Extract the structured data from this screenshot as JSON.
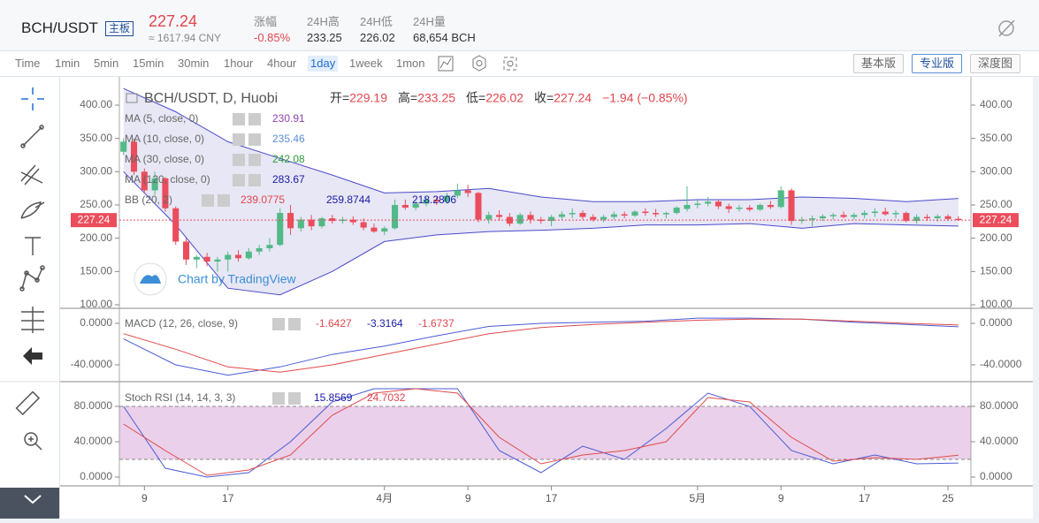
{
  "header": {
    "symbol": "BCH/USDT",
    "badge": "主板",
    "price": 227.24,
    "cny": "≈ 1617.94 CNY",
    "stats": [
      {
        "label": "涨幅",
        "value": "-0.85%",
        "color": "#e0464e"
      },
      {
        "label": "24H高",
        "value": "233.25",
        "color": "#333"
      },
      {
        "label": "24H低",
        "value": "226.02",
        "color": "#333"
      },
      {
        "label": "24H量",
        "value": "68,654 BCH",
        "color": "#333"
      }
    ]
  },
  "toolbar": {
    "intervals": [
      "Time",
      "1min",
      "5min",
      "15min",
      "30min",
      "1hour",
      "4hour",
      "1day",
      "1week",
      "1mon"
    ],
    "selected_interval": "1day",
    "buttons": [
      "基本版",
      "专业版",
      "深度图"
    ],
    "selected_button": "专业版"
  },
  "chart": {
    "title": "BCH/USDT, D, Huobi",
    "ohlc_legend": [
      {
        "label": "开=",
        "value": "229.19"
      },
      {
        "label": "高=",
        "value": "233.25"
      },
      {
        "label": "低=",
        "value": "226.02"
      },
      {
        "label": "收=",
        "value": "227.24"
      }
    ],
    "change": "−1.94 (−0.85%)",
    "watermark": "Chart by TradingView",
    "up_color": "#53b987",
    "down_color": "#eb4d5c",
    "xlim": [
      -0.4,
      81.2
    ],
    "xticks": [
      {
        "value": 2,
        "label": "9"
      },
      {
        "value": 10,
        "label": "17"
      },
      {
        "value": 25,
        "label": "4月"
      },
      {
        "value": 33,
        "label": "9"
      },
      {
        "value": 41,
        "label": "17"
      },
      {
        "value": 55,
        "label": "5月"
      },
      {
        "value": 63,
        "label": "9"
      },
      {
        "value": 71,
        "label": "17"
      },
      {
        "value": 79,
        "label": "25"
      }
    ],
    "ylim": [
      94.7,
      438.5
    ],
    "yticks": [
      {
        "value": 100,
        "label": "100.00"
      },
      {
        "value": 150,
        "label": "150.00"
      },
      {
        "value": 200,
        "label": "200.00"
      },
      {
        "value": 250,
        "label": "250.00"
      },
      {
        "value": 300,
        "label": "300.00"
      },
      {
        "value": 350,
        "label": "350.00"
      },
      {
        "value": 400,
        "label": "400.00"
      }
    ],
    "ohlc": [
      [
        330,
        350,
        325,
        345
      ],
      [
        345,
        350,
        295,
        300
      ],
      [
        300,
        305,
        268,
        272
      ],
      [
        272,
        300,
        265,
        290
      ],
      [
        290,
        292,
        240,
        245
      ],
      [
        245,
        248,
        190,
        195
      ],
      [
        195,
        200,
        160,
        168
      ],
      [
        168,
        175,
        155,
        172
      ],
      [
        172,
        178,
        158,
        165
      ],
      [
        165,
        172,
        150,
        168
      ],
      [
        168,
        180,
        150,
        175
      ],
      [
        175,
        182,
        165,
        170
      ],
      [
        170,
        185,
        168,
        180
      ],
      [
        180,
        190,
        175,
        185
      ],
      [
        185,
        200,
        180,
        190
      ],
      [
        190,
        245,
        188,
        238
      ],
      [
        238,
        250,
        205,
        215
      ],
      [
        215,
        232,
        210,
        228
      ],
      [
        228,
        235,
        212,
        218
      ],
      [
        218,
        232,
        215,
        230
      ],
      [
        230,
        235,
        222,
        226
      ],
      [
        226,
        232,
        222,
        228
      ],
      [
        228,
        233,
        220,
        224
      ],
      [
        224,
        230,
        212,
        216
      ],
      [
        216,
        222,
        208,
        210
      ],
      [
        210,
        218,
        205,
        215
      ],
      [
        215,
        258,
        213,
        250
      ],
      [
        250,
        258,
        243,
        246
      ],
      [
        246,
        256,
        242,
        252
      ],
      [
        252,
        262,
        248,
        258
      ],
      [
        258,
        262,
        250,
        255
      ],
      [
        255,
        268,
        252,
        264
      ],
      [
        264,
        282,
        260,
        272
      ],
      [
        272,
        280,
        262,
        268
      ],
      [
        268,
        270,
        224,
        228
      ],
      [
        228,
        240,
        222,
        235
      ],
      [
        235,
        242,
        226,
        232
      ],
      [
        232,
        238,
        218,
        222
      ],
      [
        222,
        238,
        220,
        235
      ],
      [
        235,
        240,
        222,
        228
      ],
      [
        228,
        232,
        222,
        226
      ],
      [
        226,
        235,
        218,
        232
      ],
      [
        232,
        240,
        228,
        236
      ],
      [
        236,
        245,
        230,
        238
      ],
      [
        238,
        242,
        228,
        232
      ],
      [
        232,
        236,
        225,
        228
      ],
      [
        228,
        235,
        224,
        232
      ],
      [
        232,
        240,
        228,
        236
      ],
      [
        236,
        240,
        230,
        234
      ],
      [
        234,
        242,
        232,
        240
      ],
      [
        240,
        245,
        234,
        238
      ],
      [
        238,
        244,
        232,
        236
      ],
      [
        236,
        240,
        230,
        238
      ],
      [
        238,
        248,
        236,
        246
      ],
      [
        244,
        278,
        240,
        250
      ],
      [
        250,
        258,
        245,
        252
      ],
      [
        252,
        262,
        248,
        255
      ],
      [
        255,
        258,
        244,
        248
      ],
      [
        248,
        252,
        238,
        244
      ],
      [
        244,
        250,
        240,
        246
      ],
      [
        246,
        250,
        240,
        243
      ],
      [
        243,
        252,
        241,
        250
      ],
      [
        250,
        256,
        244,
        247
      ],
      [
        247,
        278,
        245,
        272
      ],
      [
        272,
        275,
        220,
        226
      ],
      [
        226,
        232,
        222,
        228
      ],
      [
        228,
        234,
        218,
        230
      ],
      [
        230,
        236,
        226,
        233
      ],
      [
        233,
        238,
        228,
        235
      ],
      [
        235,
        240,
        230,
        232
      ],
      [
        232,
        238,
        228,
        235
      ],
      [
        235,
        242,
        230,
        238
      ],
      [
        238,
        245,
        232,
        240
      ],
      [
        240,
        246,
        234,
        236
      ],
      [
        236,
        242,
        230,
        238
      ],
      [
        238,
        240,
        224,
        226
      ],
      [
        226,
        236,
        222,
        232
      ],
      [
        232,
        236,
        226,
        230
      ],
      [
        230,
        236,
        225,
        233
      ],
      [
        233,
        236,
        226,
        229
      ],
      [
        229.19,
        233.25,
        226.02,
        227.24
      ]
    ],
    "indicators": [
      {
        "name": "MA (5, close, 0)",
        "value": "230.91",
        "color": "#8e44ad"
      },
      {
        "name": "MA (10, close, 0)",
        "value": "235.46",
        "color": "#5b8fd6"
      },
      {
        "name": "MA (30, close, 0)",
        "value": "242.08",
        "color": "#2e9e3a"
      },
      {
        "name": "MA (120, close, 0)",
        "value": "283.67",
        "color": "#1a1aa6"
      }
    ],
    "bb": {
      "name": "BB (20, 2)",
      "values": [
        {
          "value": "239.0775",
          "color": "#e0464e"
        },
        {
          "value": "259.8744",
          "color": "#1a1aa6"
        },
        {
          "value": "218.2806",
          "color": "#1a1aa6"
        }
      ],
      "x": [
        0,
        5,
        10,
        15,
        20,
        25,
        30,
        35,
        40,
        45,
        50,
        55,
        60,
        65,
        70,
        75,
        80
      ],
      "upper": [
        425,
        390,
        345,
        320,
        295,
        268,
        270,
        275,
        262,
        255,
        255,
        258,
        258,
        262,
        260,
        255,
        259.87
      ],
      "lower": [
        300,
        220,
        125,
        115,
        150,
        195,
        205,
        210,
        212,
        215,
        220,
        220,
        222,
        215,
        222,
        220,
        218.28
      ],
      "color": "#4a4acc",
      "fill": "rgba(120,120,200,0.18)"
    },
    "macd": {
      "name": "MACD (12, 26, close, 9)",
      "values": [
        {
          "value": "-1.6427",
          "color": "#e0464e"
        },
        {
          "value": "-3.3164",
          "color": "#1a1aa6"
        },
        {
          "value": "-1.6737",
          "color": "#e0464e"
        }
      ],
      "ylim": [
        -56.2,
        11.9
      ],
      "yticks": [
        {
          "value": 0,
          "label": "0.0000"
        },
        {
          "value": -40,
          "label": "-40.0000"
        }
      ],
      "x": [
        0,
        5,
        10,
        15,
        20,
        25,
        30,
        35,
        40,
        45,
        50,
        55,
        60,
        65,
        70,
        75,
        80
      ],
      "series": [
        {
          "color": "#4a5bd6",
          "values": [
            -15,
            -40,
            -50,
            -42,
            -30,
            -22,
            -12,
            -3,
            0,
            1,
            2,
            5,
            5,
            4,
            1,
            -1,
            -3.3164
          ]
        },
        {
          "color": "#e04a4a",
          "values": [
            -10,
            -25,
            -42,
            -47,
            -40,
            -30,
            -20,
            -10,
            -4,
            -1,
            1,
            3,
            4,
            4,
            2,
            0,
            -1.6737
          ]
        }
      ]
    },
    "stoch": {
      "name": "Stoch RSI (14, 14, 3, 3)",
      "values": [
        {
          "value": "15.8569",
          "color": "#1a1aa6"
        },
        {
          "value": "24.7032",
          "color": "#e0464e"
        }
      ],
      "ylim": [
        -10,
        104
      ],
      "yticks": [
        {
          "value": 0,
          "label": "0.0000"
        },
        {
          "value": 40,
          "label": "40.0000"
        },
        {
          "value": 80,
          "label": "80.0000"
        }
      ],
      "band": [
        20,
        80
      ],
      "band_color": "rgba(190,110,190,0.32)",
      "x": [
        0,
        4,
        8,
        12,
        16,
        20,
        24,
        28,
        32,
        36,
        40,
        44,
        48,
        52,
        56,
        60,
        64,
        68,
        72,
        76,
        80
      ],
      "series": [
        {
          "color": "#4a5bd6",
          "values": [
            80,
            10,
            0,
            5,
            40,
            85,
            100,
            100,
            100,
            30,
            5,
            35,
            20,
            55,
            95,
            80,
            30,
            15,
            25,
            15,
            15.8569
          ]
        },
        {
          "color": "#e04a4a",
          "values": [
            60,
            30,
            2,
            8,
            25,
            70,
            95,
            100,
            95,
            45,
            15,
            25,
            30,
            40,
            90,
            85,
            45,
            18,
            22,
            20,
            24.7032
          ]
        }
      ]
    }
  }
}
